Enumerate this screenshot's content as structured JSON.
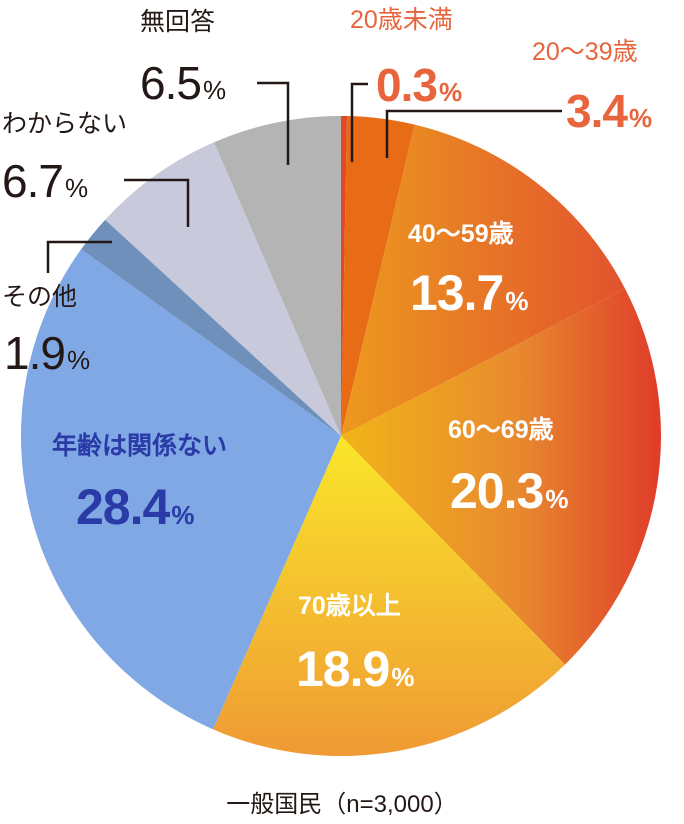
{
  "chart_data": {
    "type": "pie",
    "title": "",
    "caption": "一般国民（n=3,000）",
    "start_angle_deg": 0,
    "direction": "clockwise",
    "categories": [
      "20歳未満",
      "20～39歳",
      "40～59歳",
      "60～69歳",
      "70歳以上",
      "年齢は関係ない",
      "その他",
      "わからない",
      "無回答"
    ],
    "values": [
      0.3,
      3.4,
      13.7,
      20.3,
      18.9,
      28.4,
      1.9,
      6.7,
      6.5
    ],
    "unit": "%",
    "colors": [
      "#e04a26",
      "#e86c16",
      "#e88a26",
      "#e98f2a",
      "#f4c22e",
      "#80a8e4",
      "#7090bc",
      "#c8cadc",
      "#b4b4b4"
    ],
    "labels": [
      {
        "category": "20歳未満",
        "value": "0.3",
        "unit": "%"
      },
      {
        "category": "20～39歳",
        "value": "3.4",
        "unit": "%"
      },
      {
        "category": "40～59歳",
        "value": "13.7",
        "unit": "%"
      },
      {
        "category": "60～69歳",
        "value": "20.3",
        "unit": "%"
      },
      {
        "category": "70歳以上",
        "value": "18.9",
        "unit": "%"
      },
      {
        "category": "年齢は関係ない",
        "value": "28.4",
        "unit": "%"
      },
      {
        "category": "その他",
        "value": "1.9",
        "unit": "%"
      },
      {
        "category": "わからない",
        "value": "6.7",
        "unit": "%"
      },
      {
        "category": "無回答",
        "value": "6.5",
        "unit": "%"
      }
    ],
    "legend": "none"
  }
}
